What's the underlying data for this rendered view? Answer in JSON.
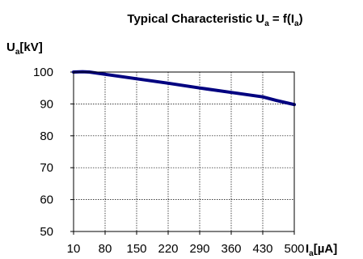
{
  "chart_data": {
    "type": "line",
    "title": {
      "main": "Typical Characteristic U",
      "sub1": "a",
      "mid": " = f(I",
      "sub2": "a",
      "end": ")"
    },
    "ylabel": {
      "main": "U",
      "sub": "a",
      "unit": "[kV]"
    },
    "xlabel": {
      "main": "I",
      "sub": "a",
      "unit": "[µA]"
    },
    "xticks": [
      10,
      80,
      150,
      220,
      290,
      360,
      430,
      500
    ],
    "yticks": [
      50,
      60,
      70,
      80,
      90,
      100
    ],
    "xlim": [
      10,
      500
    ],
    "ylim": [
      50,
      100
    ],
    "grid": true,
    "line_color": "#000080",
    "series": [
      {
        "x": [
          10,
          30,
          45,
          80,
          150,
          220,
          290,
          360,
          430,
          460,
          500
        ],
        "y": [
          100,
          100.1,
          100,
          99.3,
          97.9,
          96.5,
          95.0,
          93.6,
          92.2,
          91.1,
          89.8
        ]
      }
    ]
  }
}
